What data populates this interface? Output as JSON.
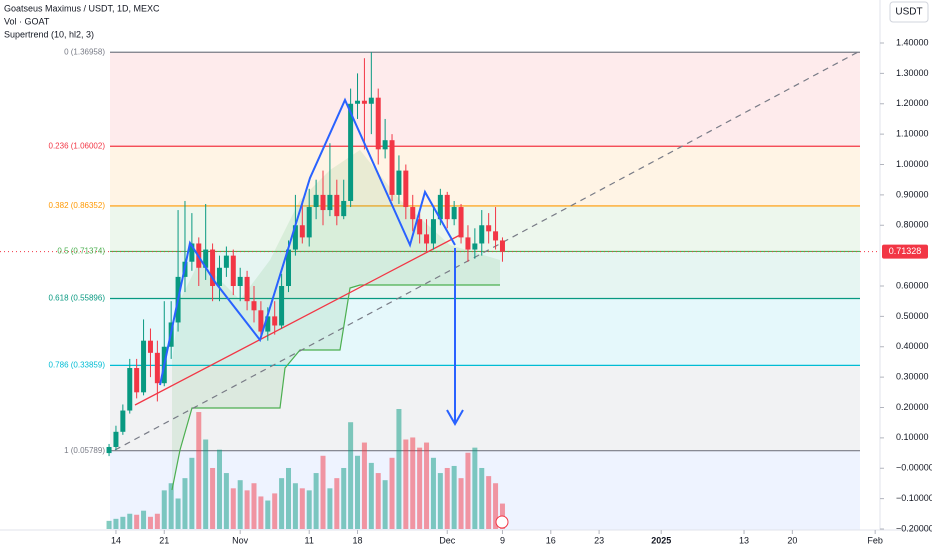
{
  "chart_data": {
    "type": "candlestick",
    "title": "Goatseus Maximus / USDT, 1D, MEXC",
    "indicators": [
      "Vol · GOAT",
      "Supertrend (10, hl2, 3)"
    ],
    "currency_button": "USDT",
    "last_price": 0.71328,
    "up_color": "#089981",
    "down_color": "#f23645",
    "xlim": [
      -16.8,
      110.7
    ],
    "ylim": [
      -0.2033,
      1.5416
    ],
    "xticks": [
      {
        "value": 0,
        "label": "14"
      },
      {
        "value": 7,
        "label": "21"
      },
      {
        "value": 18,
        "label": "Nov"
      },
      {
        "value": 28,
        "label": "11"
      },
      {
        "value": 35,
        "label": "18"
      },
      {
        "value": 48,
        "label": "Dec"
      },
      {
        "value": 56,
        "label": "9"
      },
      {
        "value": 63,
        "label": "16"
      },
      {
        "value": 70,
        "label": "23"
      },
      {
        "value": 79,
        "label": "2025"
      },
      {
        "value": 91,
        "label": "13"
      },
      {
        "value": 98,
        "label": "20"
      },
      {
        "value": 110,
        "label": "Feb"
      }
    ],
    "yticks": [
      {
        "value": 1.4,
        "label": "1.40000"
      },
      {
        "value": 1.3,
        "label": "1.30000"
      },
      {
        "value": 1.2,
        "label": "1.20000"
      },
      {
        "value": 1.1,
        "label": "1.10000"
      },
      {
        "value": 1.0,
        "label": "1.00000"
      },
      {
        "value": 0.9,
        "label": "0.90000"
      },
      {
        "value": 0.8,
        "label": "0.80000"
      },
      {
        "value": 0.6,
        "label": "0.60000"
      },
      {
        "value": 0.5,
        "label": "0.50000"
      },
      {
        "value": 0.4,
        "label": "0.40000"
      },
      {
        "value": 0.3,
        "label": "0.30000"
      },
      {
        "value": 0.2,
        "label": "0.20000"
      },
      {
        "value": 0.1,
        "label": "0.10000"
      },
      {
        "value": 0,
        "label": "−0.00000"
      },
      {
        "value": -0.1,
        "label": "−0.10000"
      },
      {
        "value": -0.2,
        "label": "−0.20000"
      }
    ],
    "fib_levels": [
      {
        "label": "0 (1.36958)",
        "value": 1.36958,
        "color": "#787b86",
        "band": "rgba(242,54,69,0.10)"
      },
      {
        "label": "0.236 (1.06002)",
        "value": 1.06002,
        "color": "#f23645",
        "band": "rgba(255,152,0,0.10)"
      },
      {
        "label": "0.382 (0.86352)",
        "value": 0.86352,
        "color": "#ff9800",
        "band": "rgba(76,175,80,0.10)"
      },
      {
        "label": "0.5 (0.71374)",
        "value": 0.71374,
        "color": "#4caf50",
        "band": "rgba(8,153,129,0.10)"
      },
      {
        "label": "0.618 (0.55896)",
        "value": 0.55896,
        "color": "#089981",
        "band": "rgba(0,188,212,0.10)"
      },
      {
        "label": "0.786 (0.33859)",
        "value": 0.33859,
        "color": "#00bcd4",
        "band": "rgba(120,123,134,0.10)"
      },
      {
        "label": "1 (0.05789)",
        "value": 0.05789,
        "color": "#787b86",
        "band": "rgba(41,98,255,0.08)"
      }
    ],
    "x": [
      -1,
      0,
      1,
      2,
      3,
      4,
      5,
      6,
      7,
      8,
      9,
      10,
      11,
      12,
      13,
      14,
      15,
      16,
      17,
      18,
      19,
      20,
      21,
      22,
      23,
      24,
      25,
      26,
      27,
      28,
      29,
      30,
      31,
      32,
      33,
      34,
      35,
      36,
      37,
      38,
      39,
      40,
      41,
      42,
      43,
      44,
      45,
      46,
      47,
      48,
      49,
      50,
      51,
      52,
      53,
      54,
      55,
      56
    ],
    "open": [
      0.05,
      0.07,
      0.12,
      0.19,
      0.33,
      0.25,
      0.42,
      0.38,
      0.28,
      0.4,
      0.48,
      0.63,
      0.68,
      0.74,
      0.66,
      0.72,
      0.6,
      0.66,
      0.7,
      0.6,
      0.63,
      0.55,
      0.52,
      0.45,
      0.5,
      0.47,
      0.6,
      0.72,
      0.8,
      0.76,
      0.86,
      0.9,
      0.85,
      0.9,
      0.83,
      0.88,
      1.2,
      1.21,
      1.2,
      1.22,
      1.05,
      1.08,
      0.9,
      0.98,
      0.86,
      0.82,
      0.77,
      0.74,
      0.82,
      0.9,
      0.82,
      0.86,
      0.76,
      0.72,
      0.74,
      0.8,
      0.78,
      0.75
    ],
    "high": [
      0.08,
      0.14,
      0.21,
      0.36,
      0.36,
      0.49,
      0.46,
      0.42,
      0.55,
      0.55,
      0.85,
      0.88,
      0.84,
      0.76,
      0.87,
      0.74,
      0.7,
      0.73,
      0.72,
      0.66,
      0.65,
      0.6,
      0.55,
      0.53,
      0.55,
      0.64,
      0.75,
      0.9,
      0.88,
      0.92,
      0.95,
      0.98,
      1.07,
      0.95,
      0.95,
      1.25,
      1.3,
      1.35,
      1.37,
      1.25,
      1.15,
      1.1,
      1.03,
      1.0,
      0.9,
      0.85,
      0.82,
      0.86,
      0.92,
      0.91,
      0.88,
      0.87,
      0.8,
      0.79,
      0.85,
      0.84,
      0.86,
      0.76
    ],
    "low": [
      0.04,
      0.06,
      0.11,
      0.18,
      0.23,
      0.24,
      0.3,
      0.22,
      0.27,
      0.36,
      0.45,
      0.58,
      0.65,
      0.6,
      0.62,
      0.55,
      0.55,
      0.63,
      0.57,
      0.55,
      0.52,
      0.48,
      0.43,
      0.42,
      0.44,
      0.46,
      0.58,
      0.7,
      0.74,
      0.73,
      0.82,
      0.8,
      0.83,
      0.8,
      0.82,
      0.86,
      1.15,
      1.05,
      1.1,
      1.0,
      1.02,
      0.88,
      0.87,
      0.82,
      0.78,
      0.74,
      0.71,
      0.72,
      0.8,
      0.79,
      0.8,
      0.74,
      0.68,
      0.69,
      0.7,
      0.74,
      0.72,
      0.68
    ],
    "close": [
      0.07,
      0.12,
      0.19,
      0.33,
      0.25,
      0.42,
      0.38,
      0.28,
      0.4,
      0.48,
      0.63,
      0.68,
      0.74,
      0.66,
      0.72,
      0.6,
      0.66,
      0.7,
      0.6,
      0.63,
      0.55,
      0.52,
      0.45,
      0.5,
      0.47,
      0.6,
      0.72,
      0.8,
      0.76,
      0.86,
      0.9,
      0.85,
      0.9,
      0.83,
      0.88,
      1.2,
      1.21,
      1.2,
      1.22,
      1.05,
      1.08,
      0.9,
      0.98,
      0.86,
      0.82,
      0.77,
      0.74,
      0.82,
      0.9,
      0.82,
      0.86,
      0.76,
      0.72,
      0.74,
      0.8,
      0.78,
      0.75,
      0.71328
    ],
    "volume": [
      8,
      10,
      12,
      15,
      14,
      18,
      12,
      15,
      38,
      45,
      30,
      50,
      70,
      115,
      88,
      60,
      78,
      55,
      40,
      48,
      38,
      45,
      32,
      28,
      35,
      50,
      60,
      45,
      40,
      38,
      55,
      72,
      40,
      50,
      60,
      105,
      72,
      85,
      65,
      55,
      48,
      70,
      118,
      88,
      90,
      80,
      85,
      70,
      55,
      60,
      62,
      50,
      75,
      80,
      60,
      52,
      45,
      25
    ]
  }
}
